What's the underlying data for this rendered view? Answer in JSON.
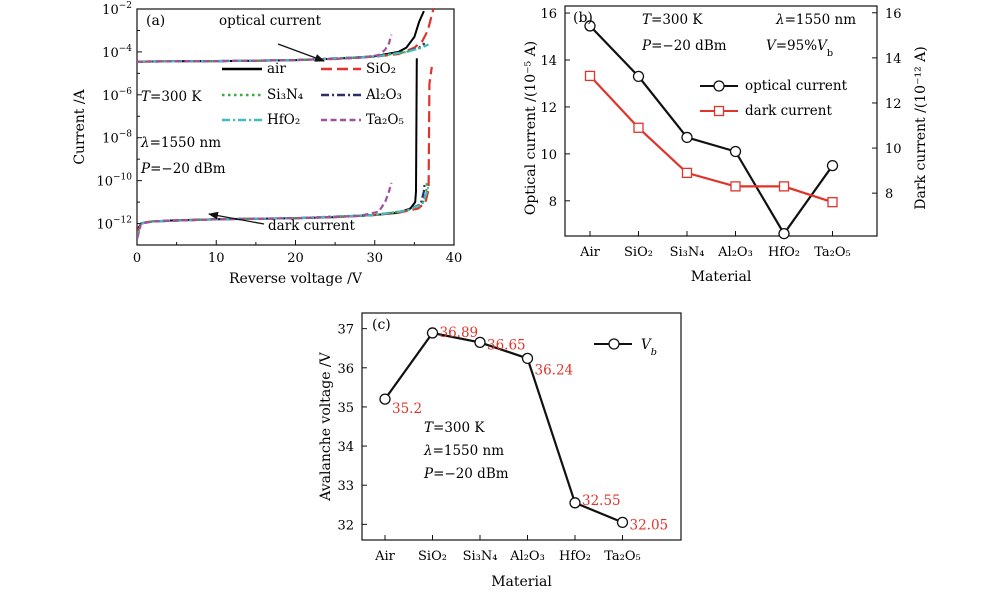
{
  "chart_data": [
    {
      "panel": "(a)",
      "type": "line",
      "xlabel": "Reverse voltage /V",
      "ylabel": "Current /A",
      "yscale": "log",
      "xlim": [
        0,
        40
      ],
      "ylim_exp": [
        -13,
        -2
      ],
      "xticks": [
        "0",
        "10",
        "20",
        "30",
        "40"
      ],
      "ytick_exps": [
        -2,
        -4,
        -6,
        -8,
        -10,
        -12
      ],
      "series": [
        {
          "name": "air",
          "color": "#000000",
          "dash": "solid",
          "optical": {
            "v": [
              0,
              5,
              10,
              15,
              20,
              25,
              30,
              33,
              34,
              35,
              35.6,
              36.2
            ],
            "log10i": [
              -4.45,
              -4.44,
              -4.43,
              -4.41,
              -4.38,
              -4.32,
              -4.2,
              -4.0,
              -3.8,
              -3.3,
              -2.6,
              -2.1
            ]
          },
          "dark": {
            "v": [
              0,
              0.2,
              0.5,
              1,
              2,
              5,
              10,
              15,
              20,
              25,
              30,
              33,
              34.5,
              35.1,
              35.2,
              35.3
            ],
            "log10i": [
              -12.7,
              -12.2,
              -12.0,
              -11.95,
              -11.9,
              -11.85,
              -11.8,
              -11.78,
              -11.75,
              -11.7,
              -11.6,
              -11.5,
              -11.3,
              -11.0,
              -10.5,
              -4.3
            ]
          }
        },
        {
          "name": "SiO₂",
          "color": "#e0342b",
          "dash": "long",
          "optical": {
            "v": [
              0,
              5,
              10,
              15,
              20,
              25,
              30,
              33,
              35,
              36,
              36.7,
              37.4
            ],
            "log10i": [
              -4.45,
              -4.44,
              -4.43,
              -4.41,
              -4.38,
              -4.33,
              -4.22,
              -4.1,
              -3.8,
              -3.5,
              -3.0,
              -2.0
            ]
          },
          "dark": {
            "v": [
              0,
              0.2,
              0.5,
              1,
              2,
              5,
              10,
              15,
              20,
              25,
              30,
              33,
              35.5,
              36.4,
              36.8,
              36.9,
              37.2
            ],
            "log10i": [
              -12.7,
              -12.2,
              -12.0,
              -11.95,
              -11.9,
              -11.85,
              -11.8,
              -11.78,
              -11.75,
              -11.7,
              -11.6,
              -11.5,
              -11.3,
              -11.0,
              -10.4,
              -5.5,
              -4.7
            ]
          }
        },
        {
          "name": "Si₃N₄",
          "color": "#3caa3c",
          "dash": "dot",
          "optical": {
            "v": [
              0,
              10,
              20,
              30,
              34,
              35.8,
              36.4,
              36.6
            ],
            "log10i": [
              -4.45,
              -4.43,
              -4.38,
              -4.22,
              -4.0,
              -3.8,
              -3.7,
              -3.6
            ]
          },
          "dark": {
            "v": [
              0,
              0.5,
              2,
              10,
              20,
              30,
              34,
              36,
              36.5,
              36.6
            ],
            "log10i": [
              -12.7,
              -12.0,
              -11.9,
              -11.8,
              -11.75,
              -11.6,
              -11.4,
              -11.1,
              -10.5,
              -10.0
            ]
          }
        },
        {
          "name": "Al₂O₃",
          "color": "#2b2f6e",
          "dash": "dashdot",
          "optical": {
            "v": [
              0,
              10,
              20,
              30,
              34,
              35.6,
              36.1,
              36.3
            ],
            "log10i": [
              -4.45,
              -4.43,
              -4.38,
              -4.22,
              -4.0,
              -3.8,
              -3.65,
              -3.6
            ]
          },
          "dark": {
            "v": [
              0,
              0.5,
              2,
              10,
              20,
              30,
              34,
              35.8,
              36.2,
              36.3
            ],
            "log10i": [
              -12.7,
              -12.0,
              -11.9,
              -11.8,
              -11.75,
              -11.6,
              -11.4,
              -11.1,
              -10.5,
              -10.1
            ]
          }
        },
        {
          "name": "HfO₂",
          "color": "#3fbcc0",
          "dash": "dashdot",
          "optical": {
            "v": [
              0,
              10,
              20,
              30,
              34,
              36,
              36.5,
              36.8
            ],
            "log10i": [
              -4.45,
              -4.43,
              -4.38,
              -4.22,
              -4.0,
              -3.8,
              -3.7,
              -3.65
            ]
          },
          "dark": {
            "v": [
              0,
              0.5,
              2,
              10,
              20,
              30,
              34,
              36,
              36.6,
              36.8
            ],
            "log10i": [
              -12.7,
              -12.0,
              -11.9,
              -11.8,
              -11.75,
              -11.6,
              -11.4,
              -11.1,
              -10.5,
              -10.2
            ]
          }
        },
        {
          "name": "Ta₂O₅",
          "color": "#a1509c",
          "dash": "dash",
          "optical": {
            "v": [
              0,
              10,
              20,
              28,
              30.5,
              31.3,
              31.8,
              32.1
            ],
            "log10i": [
              -4.45,
              -4.43,
              -4.38,
              -4.28,
              -4.15,
              -3.9,
              -3.6,
              -3.2
            ]
          },
          "dark": {
            "v": [
              0,
              0.5,
              2,
              10,
              20,
              28,
              30.5,
              31.3,
              31.8,
              32.1
            ],
            "log10i": [
              -12.7,
              -12.0,
              -11.9,
              -11.8,
              -11.75,
              -11.65,
              -11.45,
              -11.0,
              -10.5,
              -10.1
            ]
          }
        }
      ],
      "annotations": {
        "optical": "optical current",
        "dark": "dark current",
        "cond_T": "T=300 K",
        "cond_lambda": "λ=1550 nm",
        "cond_P": "P=−20 dBm"
      }
    },
    {
      "panel": "(b)",
      "type": "line",
      "xlabel": "Material",
      "ylabel": "Optical current /(10⁻⁵ A)",
      "ylabel_right": "Dark current /(10⁻¹² A)",
      "categories": [
        "Air",
        "SiO₂",
        "Si₃N₄",
        "Al₂O₃",
        "HfO₂",
        "Ta₂O₅"
      ],
      "ylim": [
        6.5,
        16.3
      ],
      "yticks": [
        8,
        10,
        12,
        14,
        16
      ],
      "ylim_right": [
        6.1,
        16.3
      ],
      "yticks_right": [
        8,
        10,
        12,
        14,
        16
      ],
      "series": [
        {
          "name": "optical current",
          "color": "#111111",
          "marker": "circle",
          "axis": "left",
          "values": [
            15.45,
            13.3,
            10.7,
            10.1,
            6.6,
            9.5
          ]
        },
        {
          "name": "dark current",
          "color": "#e0342b",
          "marker": "square",
          "axis": "right",
          "values": [
            13.2,
            10.9,
            8.9,
            8.3,
            8.3,
            7.6
          ]
        }
      ],
      "annotations": {
        "cond_T": "T=300 K",
        "cond_lambda": "λ=1550 nm",
        "cond_P": "P=−20 dBm",
        "cond_V": "V=95%V_b"
      }
    },
    {
      "panel": "(c)",
      "type": "line",
      "xlabel": "Material",
      "ylabel": "Avalanche voltage /V",
      "categories": [
        "Air",
        "SiO₂",
        "Si₃N₄",
        "Al₂O₃",
        "HfO₂",
        "Ta₂O₅"
      ],
      "ylim": [
        31.6,
        37.4
      ],
      "yticks": [
        32,
        33,
        34,
        35,
        36,
        37
      ],
      "series": [
        {
          "name": "V_b",
          "color": "#111111",
          "marker": "circle",
          "values": [
            35.2,
            36.89,
            36.65,
            36.24,
            32.55,
            32.05
          ],
          "labels": [
            "35.2",
            "36.89",
            "36.65",
            "36.24",
            "32.55",
            "32.05"
          ]
        }
      ],
      "annotations": {
        "cond_T": "T=300 K",
        "cond_lambda": "λ=1550 nm",
        "cond_P": "P=−20 dBm"
      }
    }
  ]
}
